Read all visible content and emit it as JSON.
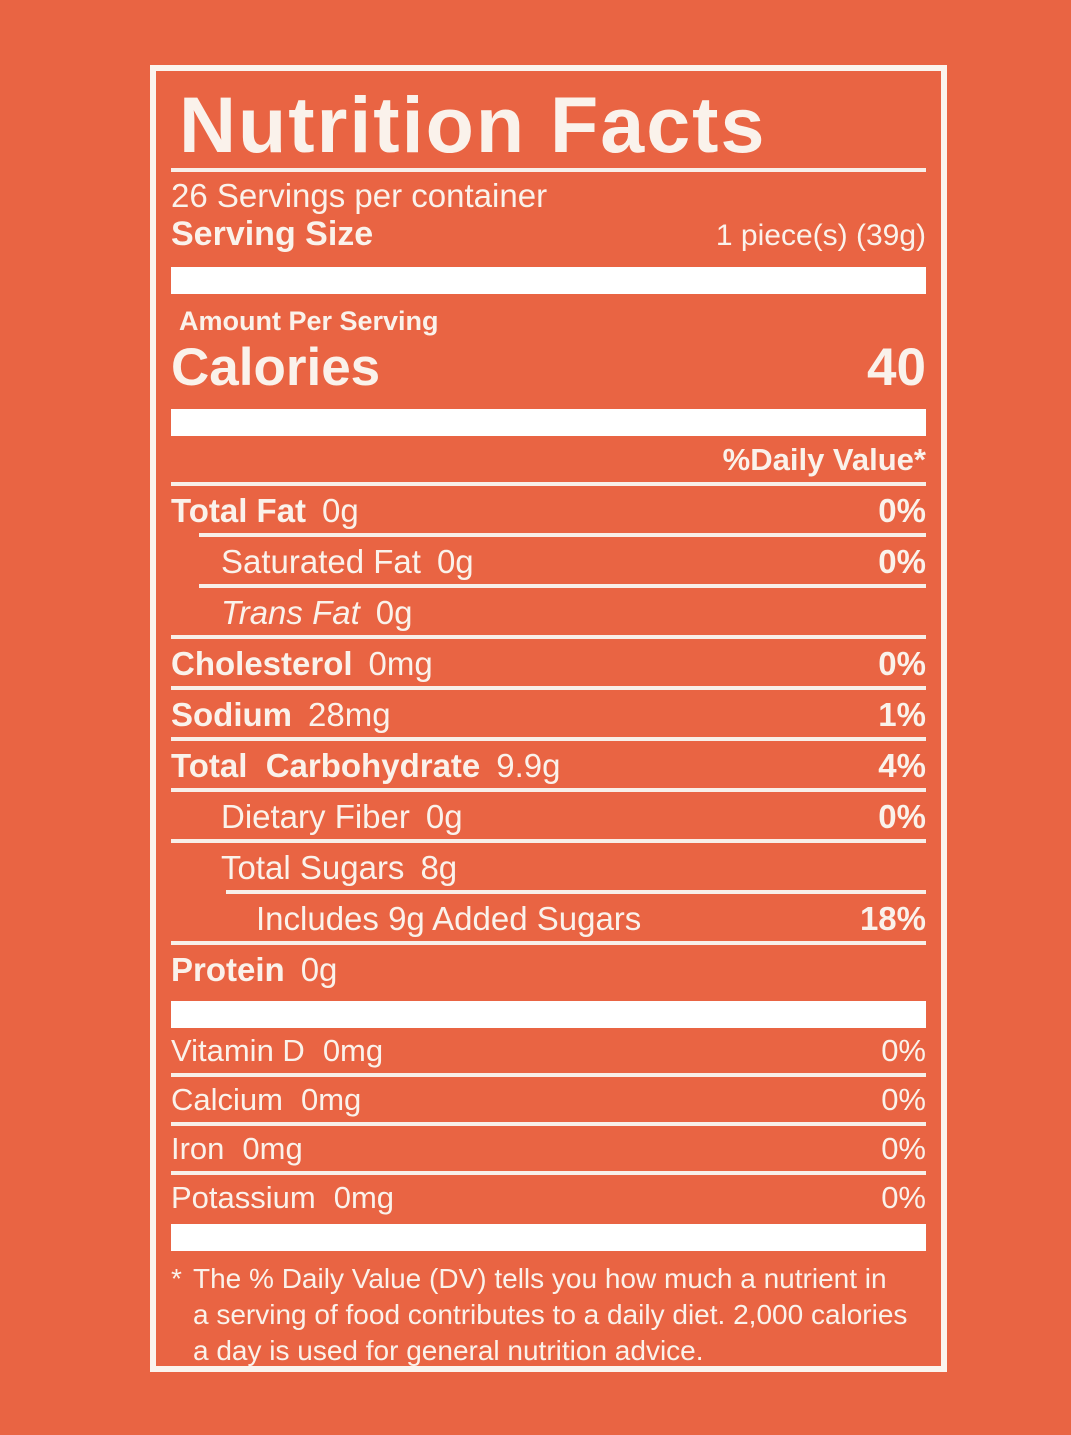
{
  "colors": {
    "background": "#E96443",
    "text": "#FAF2EB",
    "bar": "#FFFFFF"
  },
  "header": {
    "title": "Nutrition Facts",
    "servings_per_container": "26 Servings per container",
    "serving_size_label": "Serving Size",
    "serving_size_value": "1 piece(s) (39g)"
  },
  "calories": {
    "section_label": "Amount Per Serving",
    "label": "Calories",
    "value": "40"
  },
  "daily_value_header": "%Daily Value*",
  "nutrients": [
    {
      "name": "Total Fat",
      "amount": "0g",
      "dv": "0%"
    },
    {
      "name": "Saturated Fat",
      "amount": "0g",
      "dv": "0%"
    },
    {
      "name": "Trans Fat",
      "amount": "0g",
      "dv": ""
    },
    {
      "name": "Cholesterol",
      "amount": "0mg",
      "dv": "0%"
    },
    {
      "name": "Sodium",
      "amount": "28mg",
      "dv": "1%"
    },
    {
      "name": "Total  Carbohydrate",
      "amount": "9.9g",
      "dv": "4%"
    },
    {
      "name": "Dietary Fiber",
      "amount": "0g",
      "dv": "0%"
    },
    {
      "name": "Total Sugars",
      "amount": "8g",
      "dv": ""
    },
    {
      "name": "Includes 9g Added Sugars",
      "amount": "",
      "dv": "18%"
    },
    {
      "name": "Protein",
      "amount": "0g",
      "dv": ""
    }
  ],
  "vitamins": [
    {
      "name": "Vitamin D",
      "amount": "0mg",
      "dv": "0%"
    },
    {
      "name": "Calcium",
      "amount": "0mg",
      "dv": "0%"
    },
    {
      "name": "Iron",
      "amount": "0mg",
      "dv": "0%"
    },
    {
      "name": "Potassium",
      "amount": "0mg",
      "dv": "0%"
    }
  ],
  "footnote": {
    "marker": "*",
    "lines": [
      "The % Daily Value (DV) tells you how much a nutrient in",
      "a serving of food contributes to a daily diet. 2,000 calories",
      "a day is used for general nutrition advice."
    ]
  }
}
